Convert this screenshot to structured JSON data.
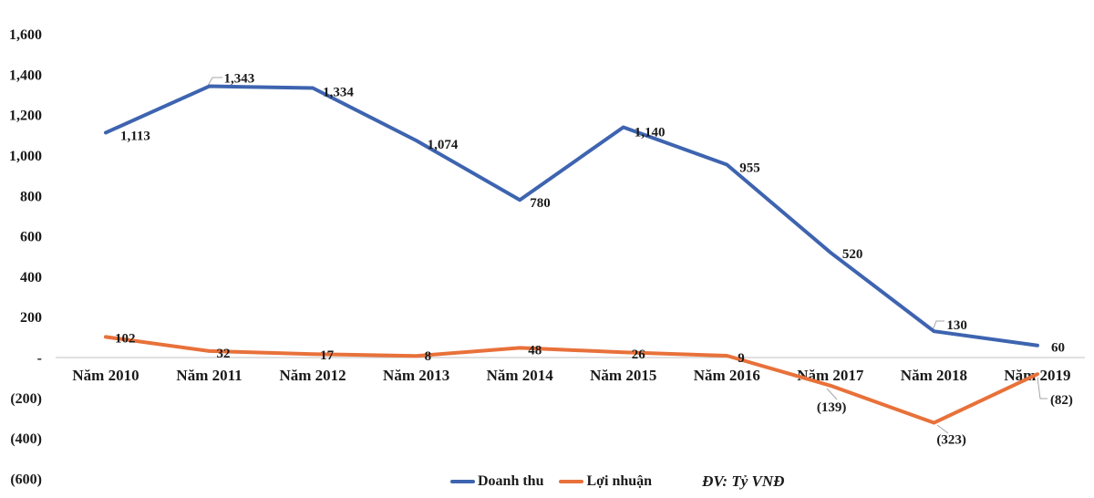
{
  "chart_data": {
    "type": "line",
    "unit_label": "ĐV: Tỷ VNĐ",
    "categories": [
      "Năm 2010",
      "Năm 2011",
      "Năm 2012",
      "Năm 2013",
      "Năm 2014",
      "Năm 2015",
      "Năm 2016",
      "Năm 2017",
      "Năm 2018",
      "Năm 2019"
    ],
    "series": [
      {
        "name": "Doanh thu",
        "color": "#3E64B0",
        "values": [
          1113,
          1343,
          1334,
          1074,
          780,
          1140,
          955,
          520,
          130,
          60
        ],
        "labels": [
          "1,113",
          "1,343",
          "1,334",
          "1,074",
          "780",
          "1,140",
          "955",
          "520",
          "130",
          "60"
        ]
      },
      {
        "name": "Lợi nhuận",
        "color": "#E8713A",
        "values": [
          102,
          32,
          17,
          8,
          48,
          26,
          9,
          -139,
          -323,
          -82
        ],
        "labels": [
          "102",
          "32",
          "17",
          "8",
          "48",
          "26",
          "9",
          "(139)",
          "(323)",
          "(82)"
        ]
      }
    ],
    "y_axis": {
      "tick_labels": [
        "1,600",
        "1,400",
        "1,200",
        "1,000",
        "800",
        "600",
        "400",
        "200",
        "-",
        "(200)",
        "(400)",
        "(600)"
      ],
      "tick_values": [
        1600,
        1400,
        1200,
        1000,
        800,
        600,
        400,
        200,
        0,
        -200,
        -400,
        -600
      ],
      "min": -600,
      "max": 1600
    },
    "grid": false,
    "legend_position": "bottom",
    "axis_line_color": "#C0C0C0",
    "leader_line_color": "#A6A6A6"
  }
}
